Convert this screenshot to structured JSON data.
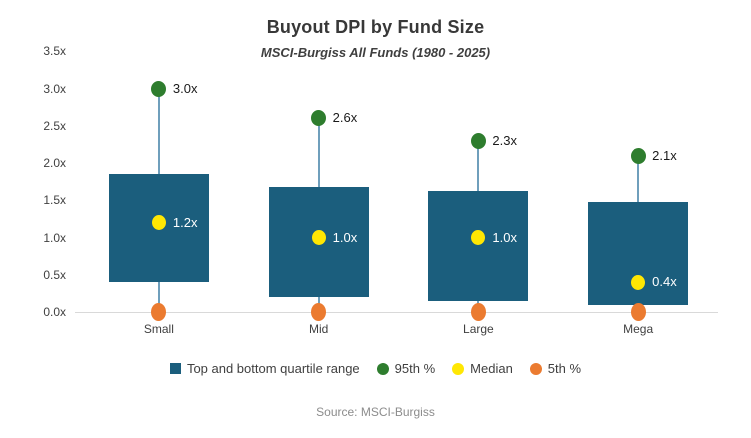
{
  "header": {
    "title": "Buyout DPI by Fund Size",
    "subtitle": "MSCI-Burgiss All Funds (1980 - 2025)"
  },
  "source": "Source: MSCI-Burgiss",
  "colors": {
    "bar": "#1b5e7d",
    "p95": "#2e7d2e",
    "median": "#ffe703",
    "p5": "#eb7b30",
    "whisker": "#6f9fbc",
    "baseline": "#d9d9d9",
    "label_outside": "#1a1a1a",
    "label_inside": "#ffffff",
    "axis_text": "#404040",
    "source_text": "#8c8c8c"
  },
  "chart_data": {
    "type": "bar",
    "subtype": "floating-bar-boxplot",
    "title": "Buyout DPI by Fund Size",
    "subtitle": "MSCI-Burgiss All Funds (1980 - 2025)",
    "categories": [
      "Small",
      "Mid",
      "Large",
      "Mega"
    ],
    "series": [
      {
        "name": "Top and bottom quartile range",
        "role": "quartile_range",
        "low": [
          0.4,
          0.2,
          0.15,
          0.1
        ],
        "high": [
          1.85,
          1.68,
          1.63,
          1.47
        ]
      },
      {
        "name": "95th %",
        "role": "p95",
        "values": [
          3.0,
          2.6,
          2.3,
          2.1
        ],
        "labels": [
          "3.0x",
          "2.6x",
          "2.3x",
          "2.1x"
        ]
      },
      {
        "name": "Median",
        "role": "median",
        "values": [
          1.2,
          1.0,
          1.0,
          0.4
        ],
        "labels": [
          "1.2x",
          "1.0x",
          "1.0x",
          "0.4x"
        ]
      },
      {
        "name": "5th %",
        "role": "p5",
        "values": [
          0.0,
          0.0,
          0.0,
          0.0
        ],
        "labels": [
          "",
          "",
          "",
          ""
        ]
      }
    ],
    "xlabel": "",
    "ylabel": "",
    "ylim": [
      0,
      3.5
    ],
    "ytick_step": 0.5,
    "ytick_labels": [
      "0.0x",
      "0.5x",
      "1.0x",
      "1.5x",
      "2.0x",
      "2.5x",
      "3.0x",
      "3.5x"
    ],
    "grid": "baseline-only",
    "legend_position": "bottom"
  }
}
